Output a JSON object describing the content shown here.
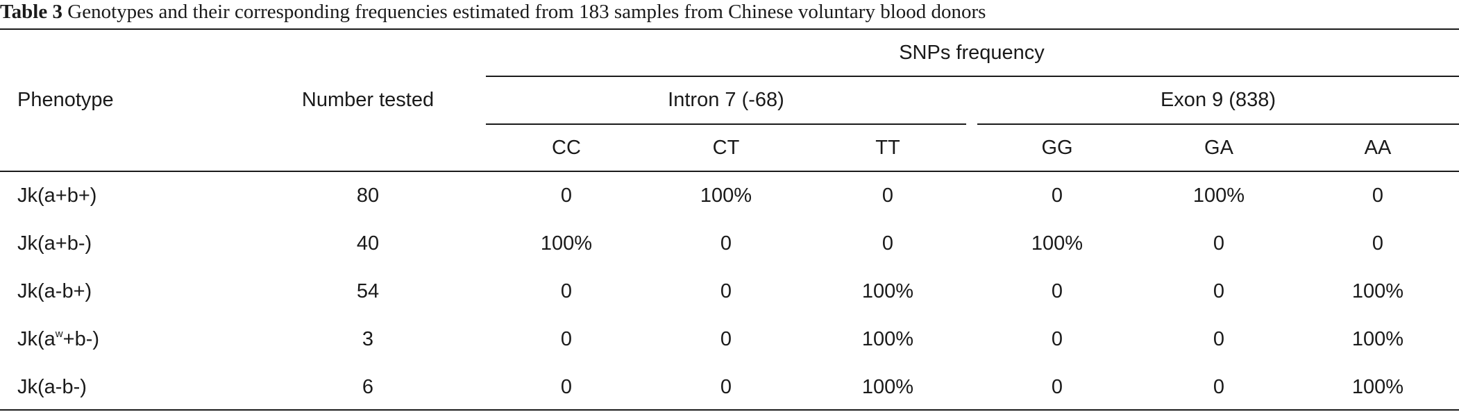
{
  "caption": {
    "label": "Table 3",
    "text": "Genotypes and their corresponding frequencies estimated from 183 samples from Chinese voluntary blood donors"
  },
  "header": {
    "phenotype": "Phenotype",
    "number_tested": "Number tested",
    "snps_frequency": "SNPs frequency",
    "groups": [
      {
        "label": "Intron 7 (-68)",
        "columns": [
          "CC",
          "CT",
          "TT"
        ]
      },
      {
        "label": "Exon 9 (838)",
        "columns": [
          "GG",
          "GA",
          "AA"
        ]
      }
    ]
  },
  "rows": [
    {
      "phenotype": "Jk(a+b+)",
      "number": "80",
      "values": [
        "0",
        "100%",
        "0",
        "0",
        "100%",
        "0"
      ]
    },
    {
      "phenotype": "Jk(a+b-)",
      "number": "40",
      "values": [
        "100%",
        "0",
        "0",
        "100%",
        "0",
        "0"
      ]
    },
    {
      "phenotype": "Jk(a-b+)",
      "number": "54",
      "values": [
        "0",
        "0",
        "100%",
        "0",
        "0",
        "100%"
      ]
    },
    {
      "phenotype_prefix": "Jk(a",
      "phenotype_sup": "w",
      "phenotype_suffix": "+b-)",
      "number": "3",
      "values": [
        "0",
        "0",
        "100%",
        "0",
        "0",
        "100%"
      ]
    },
    {
      "phenotype": "Jk(a-b-)",
      "number": "6",
      "values": [
        "0",
        "0",
        "100%",
        "0",
        "0",
        "100%"
      ]
    }
  ]
}
